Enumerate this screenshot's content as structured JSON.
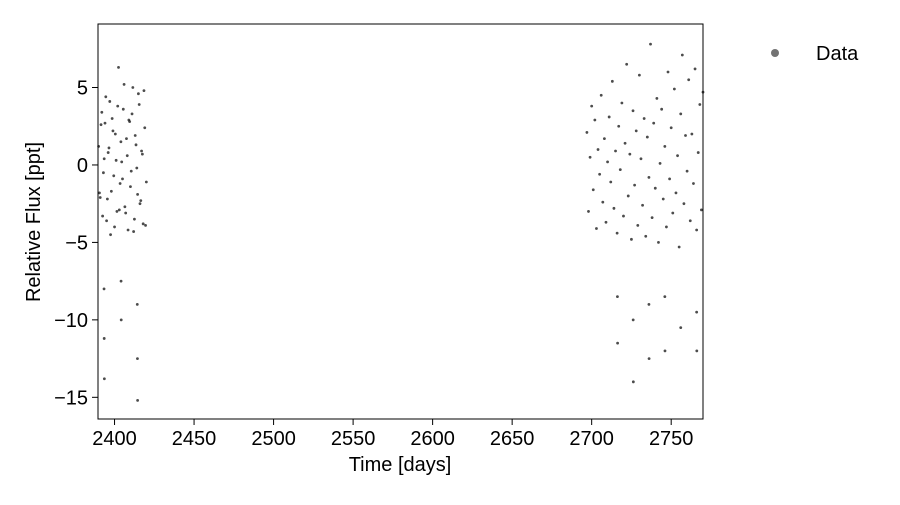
{
  "chart_data": {
    "type": "scatter",
    "xlabel": "Time [days]",
    "ylabel": "Relative Flux [ppt]",
    "xlim": [
      2389.6,
      2770
    ],
    "ylim": [
      -16.4,
      9.1
    ],
    "xticks": [
      2400,
      2450,
      2500,
      2550,
      2600,
      2650,
      2700,
      2750
    ],
    "yticks": [
      {
        "value": -15,
        "label": "−15"
      },
      {
        "value": -10,
        "label": "−10"
      },
      {
        "value": -5,
        "label": "−5"
      },
      0,
      5
    ],
    "legend": "upper right outside",
    "series": [
      {
        "name": "Data",
        "color": "#000000",
        "x": [
          2390,
          2391,
          2392,
          2393,
          2394,
          2395,
          2396,
          2397,
          2398,
          2399,
          2400,
          2401,
          2402,
          2403,
          2404,
          2405,
          2406,
          2407,
          2408,
          2409,
          2410,
          2411,
          2412,
          2413,
          2414,
          2415,
          2416,
          2417,
          2418,
          2419,
          2420,
          2390.5,
          2391.5,
          2392.5,
          2393.5,
          2394.5,
          2395.5,
          2396.5,
          2397.5,
          2398.5,
          2399.5,
          2400.5,
          2401.5,
          2402.5,
          2403.5,
          2404.5,
          2405.5,
          2406.5,
          2407.5,
          2408.5,
          2409.5,
          2410.5,
          2411.5,
          2412.5,
          2413.5,
          2414.5,
          2415.5,
          2416.5,
          2417.5,
          2418.5,
          2419.5,
          2393.4,
          2393.5,
          2393.6,
          2404.1,
          2404.2,
          2414.3,
          2414.4,
          2414.5,
          2697,
          2698,
          2699,
          2700,
          2701,
          2702,
          2703,
          2704,
          2705,
          2706,
          2707,
          2708,
          2709,
          2710,
          2711,
          2712,
          2713,
          2714,
          2715,
          2716,
          2717,
          2718,
          2719,
          2720,
          2721,
          2722,
          2723,
          2724,
          2725,
          2726,
          2727,
          2728,
          2729,
          2730,
          2731,
          2732,
          2733,
          2734,
          2735,
          2736,
          2737,
          2738,
          2739,
          2740,
          2741,
          2742,
          2743,
          2744,
          2745,
          2746,
          2747,
          2748,
          2749,
          2750,
          2751,
          2752,
          2753,
          2754,
          2755,
          2756,
          2757,
          2758,
          2759,
          2760,
          2761,
          2762,
          2763,
          2764,
          2765,
          2766,
          2767,
          2768,
          2769,
          2770,
          2716.2,
          2716.3,
          2726.1,
          2726.2,
          2736.0,
          2736.1,
          2746.0,
          2746.1,
          2756.0,
          2766.0,
          2766.1
        ],
        "values": [
          1.2,
          -2.1,
          3.4,
          -0.5,
          2.7,
          -3.6,
          0.8,
          4.1,
          -1.7,
          2.2,
          -4.0,
          0.3,
          3.8,
          -2.9,
          1.5,
          -0.9,
          5.2,
          -3.1,
          0.6,
          2.9,
          -1.4,
          3.3,
          -4.3,
          1.9,
          -0.2,
          4.6,
          -2.5,
          0.9,
          -3.8,
          2.4,
          -1.1,
          -1.8,
          2.6,
          -3.3,
          0.4,
          4.4,
          -2.2,
          1.1,
          -4.5,
          3.0,
          -0.7,
          2.0,
          -3.0,
          6.3,
          -1.2,
          0.2,
          3.6,
          -2.7,
          1.7,
          -4.2,
          2.8,
          -0.4,
          5.0,
          -3.5,
          1.3,
          -1.9,
          3.9,
          -2.3,
          0.7,
          4.8,
          -3.9,
          -8.0,
          -11.2,
          -13.8,
          -7.5,
          -10.0,
          -9.0,
          -12.5,
          -15.2,
          2.1,
          -3.0,
          0.5,
          3.8,
          -1.6,
          2.9,
          -4.1,
          1.0,
          -0.6,
          4.5,
          -2.4,
          1.7,
          -3.7,
          0.2,
          3.1,
          -1.1,
          5.4,
          -2.8,
          0.9,
          -4.4,
          2.5,
          -0.3,
          4.0,
          -3.3,
          1.4,
          6.5,
          -2.0,
          0.7,
          -4.8,
          3.5,
          -1.3,
          2.2,
          -3.9,
          5.8,
          0.4,
          -2.6,
          3.0,
          -4.6,
          1.8,
          -0.8,
          7.8,
          -3.4,
          2.7,
          -1.5,
          4.3,
          -5.0,
          0.1,
          3.6,
          -2.2,
          1.2,
          -4.0,
          6.0,
          -0.9,
          2.4,
          -3.1,
          4.9,
          -1.8,
          0.6,
          -5.3,
          3.3,
          7.1,
          -2.5,
          1.9,
          -0.4,
          5.5,
          -3.6,
          2.0,
          -1.2,
          6.2,
          -4.2,
          0.8,
          3.9,
          -2.9,
          4.7,
          -8.5,
          -11.5,
          -10.0,
          -14.0,
          -9.0,
          -12.5,
          -8.5,
          -12.0,
          -10.5,
          -9.5,
          -12.0
        ]
      }
    ]
  }
}
